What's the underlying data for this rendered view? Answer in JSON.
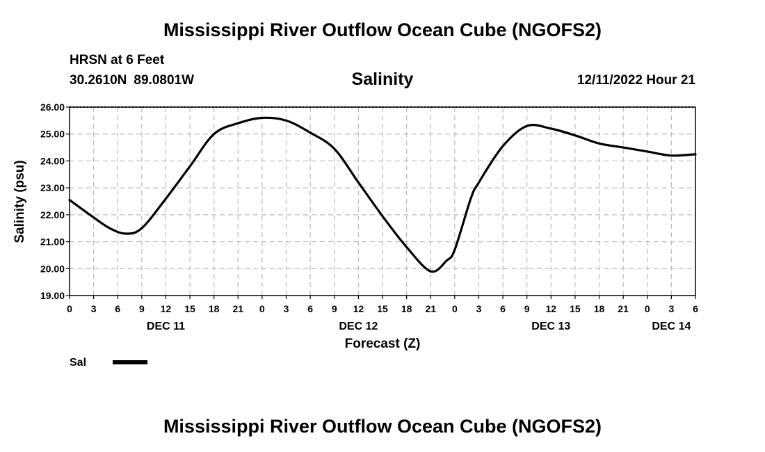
{
  "header": {
    "title": "Mississippi River Outflow Ocean Cube (NGOFS2)",
    "station": "HRSN at 6 Feet",
    "lat": "30.2610N",
    "lon": "89.0801W",
    "datetime": "12/11/2022 Hour 21"
  },
  "footer": {
    "title": "Mississippi River Outflow Ocean Cube (NGOFS2)"
  },
  "chart_data": {
    "type": "line",
    "title": "Salinity",
    "xlabel": "Forecast (Z)",
    "ylabel": "Salinity (psu)",
    "xlim": [
      0,
      78
    ],
    "ylim": [
      19,
      26
    ],
    "yticks": [
      "19.00",
      "20.00",
      "21.00",
      "22.00",
      "23.00",
      "24.00",
      "25.00",
      "26.00"
    ],
    "xtick_labels": [
      "0",
      "3",
      "6",
      "9",
      "12",
      "15",
      "18",
      "21",
      "0",
      "3",
      "6",
      "9",
      "12",
      "15",
      "18",
      "21",
      "0",
      "3",
      "6",
      "9",
      "12",
      "15",
      "18",
      "21",
      "0",
      "3",
      "6"
    ],
    "day_labels": [
      {
        "hour": 12,
        "label": "DEC 11"
      },
      {
        "hour": 36,
        "label": "DEC 12"
      },
      {
        "hour": 60,
        "label": "DEC 13"
      },
      {
        "hour": 75,
        "label": "DEC 14"
      }
    ],
    "grid": true,
    "legend": [
      {
        "name": "Sal",
        "color": "#000000"
      }
    ],
    "series": [
      {
        "name": "Sal",
        "color": "#000000",
        "x": [
          0,
          3,
          5,
          7,
          9,
          12,
          15,
          18,
          21,
          24,
          27,
          30,
          33,
          36,
          39,
          42,
          45,
          47,
          48,
          50,
          51,
          54,
          57,
          60,
          63,
          66,
          69,
          72,
          75,
          78
        ],
        "y": [
          22.55,
          21.9,
          21.5,
          21.3,
          21.5,
          22.6,
          23.8,
          25.0,
          25.4,
          25.6,
          25.5,
          25.05,
          24.45,
          23.2,
          21.95,
          20.8,
          19.9,
          20.3,
          20.7,
          22.6,
          23.2,
          24.55,
          25.3,
          25.2,
          24.95,
          24.65,
          24.5,
          24.35,
          24.2,
          24.25
        ]
      }
    ]
  }
}
